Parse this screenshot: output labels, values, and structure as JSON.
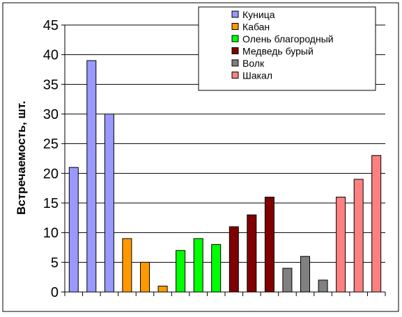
{
  "chart_data": {
    "type": "bar",
    "title": "",
    "xlabel": "",
    "ylabel": "Встречаемость, шт.",
    "ylim": [
      0,
      45
    ],
    "yticks": [
      0,
      5,
      10,
      15,
      20,
      25,
      30,
      35,
      40,
      45
    ],
    "grid": true,
    "legend_position": "top-right",
    "series": [
      {
        "name": "Куница",
        "color": "#9999ff",
        "values": [
          21,
          39,
          30
        ]
      },
      {
        "name": "Кабан",
        "color": "#ff9900",
        "values": [
          9,
          5,
          1
        ]
      },
      {
        "name": "Олень благородный",
        "color": "#00ff00",
        "values": [
          7,
          9,
          8
        ]
      },
      {
        "name": "Медведь бурый",
        "color": "#800000",
        "values": [
          11,
          13,
          16
        ]
      },
      {
        "name": "Волк",
        "color": "#808080",
        "values": [
          4,
          6,
          2
        ]
      },
      {
        "name": "Шакал",
        "color": "#ff8080",
        "values": [
          16,
          19,
          23
        ]
      }
    ]
  }
}
